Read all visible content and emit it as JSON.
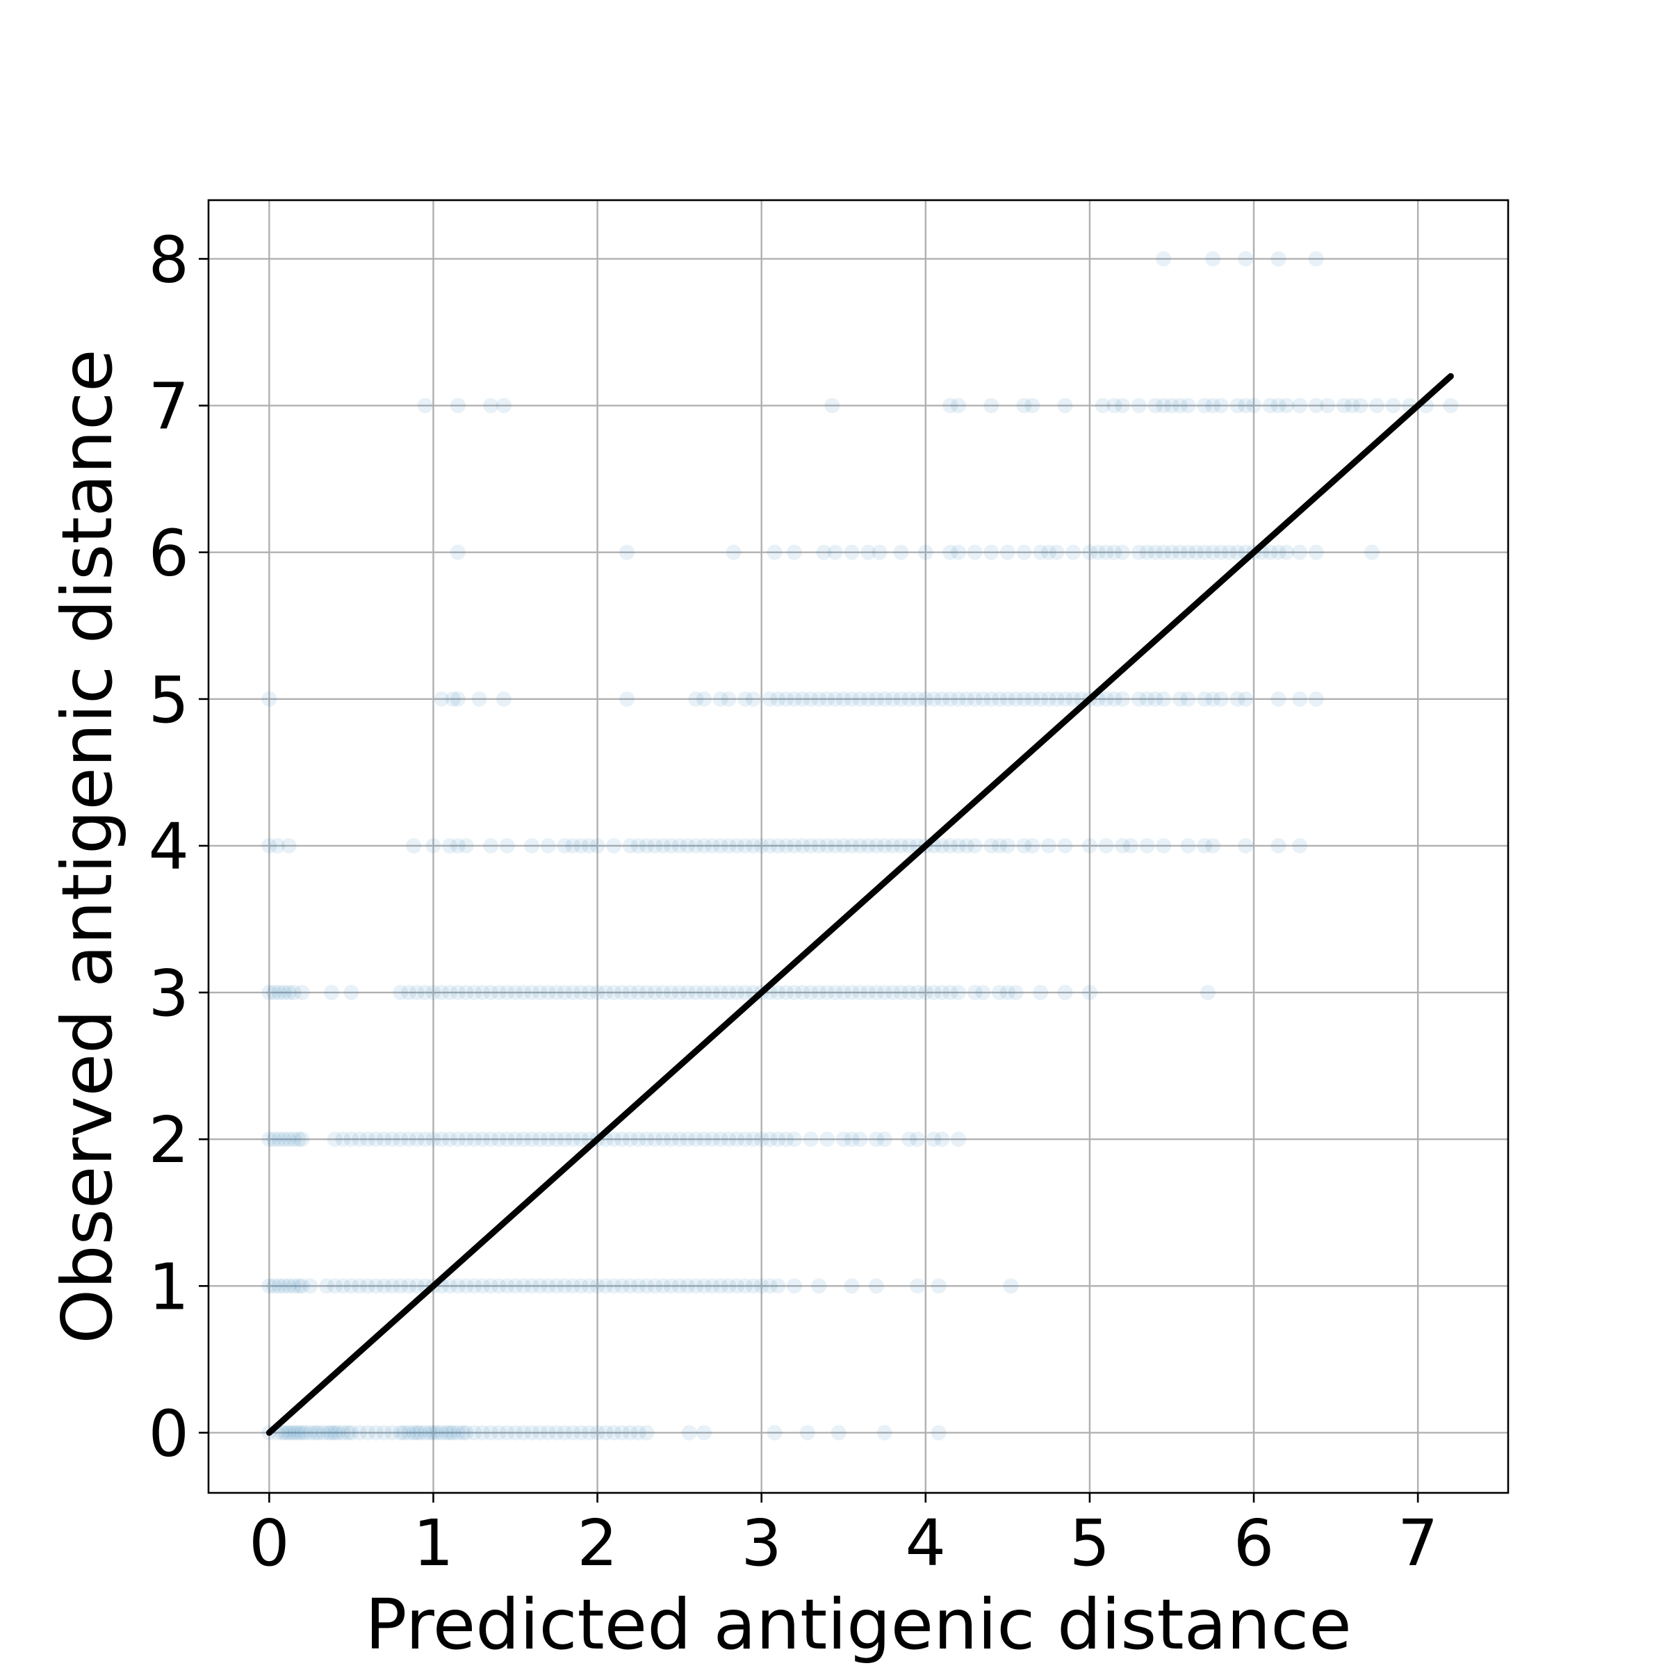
{
  "chart_data": {
    "type": "scatter",
    "title": "",
    "xlabel": "Predicted antigenic distance",
    "ylabel": "Observed antigenic distance",
    "xlim": [
      -0.37,
      7.55
    ],
    "ylim": [
      -0.41,
      8.4
    ],
    "xticks": [
      "0",
      "1",
      "2",
      "3",
      "4",
      "5",
      "6",
      "7"
    ],
    "yticks": [
      "0",
      "1",
      "2",
      "3",
      "4",
      "5",
      "6",
      "7",
      "8"
    ],
    "grid": true,
    "marker_color": "#1f77b4",
    "marker_alpha": 0.1,
    "reference_line": {
      "from": [
        0,
        0
      ],
      "to": [
        7.2,
        7.2
      ],
      "color": "#000000"
    },
    "series": [
      {
        "points": [
          {
            "y": 0,
            "x": [
              0,
              0.05,
              0.08,
              0.1,
              0.12,
              0.14,
              0.16,
              0.18,
              0.2,
              0.22,
              0.25,
              0.28,
              0.3,
              0.33,
              0.36,
              0.38,
              0.4,
              0.42,
              0.45,
              0.48,
              0.5,
              0.55,
              0.6,
              0.65,
              0.7,
              0.75,
              0.8,
              0.82,
              0.85,
              0.88,
              0.9,
              0.92,
              0.95,
              0.98,
              1.0,
              1.02,
              1.05,
              1.08,
              1.1,
              1.12,
              1.15,
              1.18,
              1.2,
              1.25,
              1.3,
              1.35,
              1.4,
              1.45,
              1.5,
              1.55,
              1.6,
              1.65,
              1.7,
              1.75,
              1.8,
              1.85,
              1.9,
              1.95,
              2.0,
              2.05,
              2.1,
              2.15,
              2.2,
              2.25,
              2.3,
              2.56,
              2.65,
              3.08,
              3.28,
              3.47,
              3.75,
              4.08
            ]
          },
          {
            "y": 1,
            "x": [
              0,
              0.03,
              0.06,
              0.09,
              0.12,
              0.15,
              0.18,
              0.2,
              0.25,
              0.35,
              0.4,
              0.45,
              0.5,
              0.55,
              0.6,
              0.65,
              0.7,
              0.75,
              0.8,
              0.85,
              0.9,
              0.95,
              1.0,
              1.05,
              1.1,
              1.15,
              1.2,
              1.25,
              1.3,
              1.35,
              1.4,
              1.45,
              1.5,
              1.55,
              1.6,
              1.65,
              1.7,
              1.75,
              1.8,
              1.85,
              1.9,
              1.95,
              2.0,
              2.05,
              2.1,
              2.15,
              2.2,
              2.25,
              2.3,
              2.35,
              2.4,
              2.45,
              2.5,
              2.55,
              2.6,
              2.65,
              2.7,
              2.75,
              2.8,
              2.85,
              2.9,
              2.95,
              3.0,
              3.05,
              3.1,
              3.2,
              3.35,
              3.55,
              3.7,
              3.95,
              4.08,
              4.52
            ]
          },
          {
            "y": 2,
            "x": [
              0,
              0.03,
              0.06,
              0.09,
              0.12,
              0.15,
              0.18,
              0.2,
              0.4,
              0.45,
              0.5,
              0.55,
              0.6,
              0.65,
              0.7,
              0.75,
              0.8,
              0.85,
              0.9,
              0.95,
              1.0,
              1.05,
              1.1,
              1.15,
              1.2,
              1.25,
              1.3,
              1.35,
              1.4,
              1.45,
              1.5,
              1.55,
              1.6,
              1.65,
              1.7,
              1.75,
              1.8,
              1.85,
              1.9,
              1.95,
              2.0,
              2.05,
              2.1,
              2.15,
              2.2,
              2.25,
              2.3,
              2.35,
              2.4,
              2.45,
              2.5,
              2.55,
              2.6,
              2.65,
              2.7,
              2.75,
              2.8,
              2.85,
              2.9,
              2.95,
              3.0,
              3.05,
              3.1,
              3.15,
              3.2,
              3.3,
              3.4,
              3.5,
              3.55,
              3.6,
              3.7,
              3.75,
              3.9,
              3.95,
              4.05,
              4.1,
              4.2
            ]
          },
          {
            "y": 3,
            "x": [
              0,
              0.03,
              0.06,
              0.09,
              0.12,
              0.15,
              0.2,
              0.38,
              0.5,
              0.8,
              0.85,
              0.9,
              0.95,
              1.0,
              1.05,
              1.1,
              1.15,
              1.2,
              1.25,
              1.3,
              1.35,
              1.4,
              1.45,
              1.5,
              1.55,
              1.6,
              1.65,
              1.7,
              1.75,
              1.8,
              1.85,
              1.9,
              1.95,
              2.0,
              2.05,
              2.1,
              2.15,
              2.2,
              2.25,
              2.3,
              2.35,
              2.4,
              2.45,
              2.5,
              2.55,
              2.6,
              2.65,
              2.7,
              2.75,
              2.8,
              2.85,
              2.9,
              2.95,
              3.0,
              3.05,
              3.1,
              3.15,
              3.2,
              3.25,
              3.3,
              3.35,
              3.4,
              3.45,
              3.5,
              3.55,
              3.6,
              3.65,
              3.7,
              3.75,
              3.8,
              3.85,
              3.9,
              3.95,
              4.0,
              4.05,
              4.1,
              4.15,
              4.2,
              4.3,
              4.35,
              4.45,
              4.5,
              4.55,
              4.7,
              4.85,
              5.0,
              5.72
            ]
          },
          {
            "y": 4,
            "x": [
              0,
              0.05,
              0.12,
              0.88,
              1.0,
              1.1,
              1.15,
              1.2,
              1.35,
              1.45,
              1.6,
              1.7,
              1.8,
              1.85,
              1.9,
              1.95,
              2.0,
              2.1,
              2.2,
              2.25,
              2.3,
              2.35,
              2.4,
              2.45,
              2.5,
              2.55,
              2.6,
              2.65,
              2.7,
              2.75,
              2.8,
              2.85,
              2.9,
              2.95,
              3.0,
              3.05,
              3.1,
              3.15,
              3.2,
              3.25,
              3.3,
              3.35,
              3.4,
              3.45,
              3.5,
              3.55,
              3.6,
              3.65,
              3.7,
              3.75,
              3.8,
              3.85,
              3.9,
              3.95,
              4.0,
              4.05,
              4.1,
              4.15,
              4.2,
              4.25,
              4.3,
              4.4,
              4.45,
              4.5,
              4.6,
              4.65,
              4.75,
              4.85,
              5.0,
              5.1,
              5.2,
              5.25,
              5.35,
              5.45,
              5.6,
              5.7,
              5.75,
              5.95,
              6.15,
              6.28
            ]
          },
          {
            "y": 5,
            "x": [
              0,
              1.05,
              1.12,
              1.15,
              1.28,
              1.43,
              2.18,
              2.6,
              2.65,
              2.75,
              2.8,
              2.9,
              2.95,
              3.05,
              3.1,
              3.15,
              3.2,
              3.25,
              3.3,
              3.35,
              3.4,
              3.45,
              3.5,
              3.55,
              3.6,
              3.65,
              3.7,
              3.75,
              3.8,
              3.85,
              3.9,
              3.95,
              4.0,
              4.05,
              4.1,
              4.15,
              4.2,
              4.25,
              4.3,
              4.35,
              4.4,
              4.45,
              4.5,
              4.55,
              4.6,
              4.65,
              4.7,
              4.75,
              4.8,
              4.85,
              4.9,
              4.95,
              5.0,
              5.05,
              5.1,
              5.15,
              5.2,
              5.3,
              5.35,
              5.4,
              5.45,
              5.55,
              5.6,
              5.7,
              5.75,
              5.8,
              5.9,
              5.95,
              6.15,
              6.28,
              6.38
            ]
          },
          {
            "y": 6,
            "x": [
              1.15,
              2.18,
              2.83,
              3.08,
              3.2,
              3.38,
              3.45,
              3.55,
              3.65,
              3.72,
              3.85,
              4.0,
              4.15,
              4.2,
              4.3,
              4.4,
              4.5,
              4.6,
              4.7,
              4.75,
              4.8,
              4.9,
              5.0,
              5.05,
              5.1,
              5.15,
              5.2,
              5.3,
              5.35,
              5.4,
              5.45,
              5.5,
              5.55,
              5.6,
              5.65,
              5.7,
              5.75,
              5.8,
              5.85,
              5.9,
              5.95,
              6.0,
              6.05,
              6.1,
              6.15,
              6.2,
              6.28,
              6.38,
              6.72
            ]
          },
          {
            "y": 7,
            "x": [
              0.95,
              1.15,
              1.35,
              1.43,
              3.43,
              4.15,
              4.2,
              4.4,
              4.6,
              4.65,
              4.85,
              5.08,
              5.15,
              5.2,
              5.3,
              5.4,
              5.45,
              5.5,
              5.55,
              5.6,
              5.7,
              5.75,
              5.8,
              5.9,
              5.95,
              6.0,
              6.1,
              6.15,
              6.2,
              6.28,
              6.38,
              6.45,
              6.55,
              6.6,
              6.65,
              6.75,
              6.85,
              6.95,
              7.05,
              7.2
            ]
          },
          {
            "y": 8,
            "x": [
              5.45,
              5.75,
              5.95,
              6.15,
              6.38
            ]
          }
        ]
      }
    ]
  }
}
